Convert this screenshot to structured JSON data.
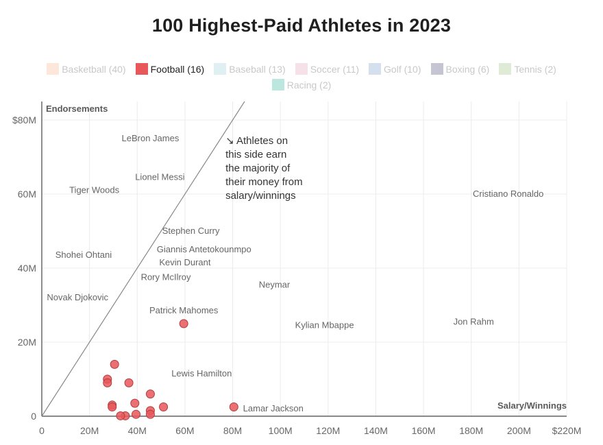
{
  "title": "100 Highest-Paid Athletes in 2023",
  "legend": [
    {
      "label": "Basketball (40)",
      "color": "#f6b58e",
      "active": false,
      "row": 1
    },
    {
      "label": "Football (16)",
      "color": "#e8575a",
      "active": true,
      "row": 1
    },
    {
      "label": "Baseball (13)",
      "color": "#9fd3dc",
      "active": false,
      "row": 1
    },
    {
      "label": "Soccer (11)",
      "color": "#e7a3bd",
      "active": false,
      "row": 1
    },
    {
      "label": "Golf (10)",
      "color": "#7da2cd",
      "active": false,
      "row": 1
    },
    {
      "label": "Boxing (6)",
      "color": "#4a4a7a",
      "active": false,
      "row": 1
    },
    {
      "label": "Tennis (2)",
      "color": "#9ec27b",
      "active": false,
      "row": 1
    },
    {
      "label": "Racing (2)",
      "color": "#2eb89a",
      "active": false,
      "row": 2
    }
  ],
  "chart_data": {
    "type": "scatter",
    "title": "100 Highest-Paid Athletes in 2023",
    "xlabel": "Salary/Winnings",
    "ylabel": "Endorsements",
    "xlim": [
      0,
      220
    ],
    "ylim": [
      0,
      85
    ],
    "x_ticks": [
      "0",
      "20M",
      "40M",
      "60M",
      "80M",
      "100M",
      "120M",
      "140M",
      "160M",
      "180M",
      "200M",
      "$220M"
    ],
    "x_tick_values": [
      0,
      20,
      40,
      60,
      80,
      100,
      120,
      140,
      160,
      180,
      200,
      220
    ],
    "y_ticks": [
      "0",
      "20M",
      "40M",
      "60M",
      "$80M"
    ],
    "y_tick_values": [
      0,
      20,
      40,
      60,
      80
    ],
    "grid": true,
    "series": [
      {
        "name": "Football (16)",
        "color": "#e8575a",
        "points": [
          {
            "x": 59.5,
            "y": 25
          },
          {
            "x": 30.5,
            "y": 14
          },
          {
            "x": 27.5,
            "y": 10
          },
          {
            "x": 27.5,
            "y": 9
          },
          {
            "x": 36.5,
            "y": 9
          },
          {
            "x": 45.5,
            "y": 6
          },
          {
            "x": 39,
            "y": 3.5
          },
          {
            "x": 29.5,
            "y": 3
          },
          {
            "x": 29.5,
            "y": 2.5
          },
          {
            "x": 51,
            "y": 2.5
          },
          {
            "x": 80.5,
            "y": 2.5
          },
          {
            "x": 45.5,
            "y": 1.5
          },
          {
            "x": 45.5,
            "y": 0.5
          },
          {
            "x": 39.5,
            "y": 0.5
          },
          {
            "x": 35,
            "y": 0.1
          },
          {
            "x": 33,
            "y": 0.1
          }
        ]
      }
    ],
    "athlete_labels": [
      {
        "name": "LeBron James",
        "x": 45.5,
        "y": 75
      },
      {
        "name": "Lionel Messi",
        "x": 49.5,
        "y": 64.5
      },
      {
        "name": "Tiger Woods",
        "x": 22,
        "y": 61
      },
      {
        "name": "Cristiano Ronaldo",
        "x": 195.5,
        "y": 60
      },
      {
        "name": "Stephen Curry",
        "x": 62.5,
        "y": 50
      },
      {
        "name": "Giannis Antetokounmpo",
        "x": 68,
        "y": 45
      },
      {
        "name": "Kevin Durant",
        "x": 60,
        "y": 41.5
      },
      {
        "name": "Shohei Ohtani",
        "x": 17.5,
        "y": 43.5
      },
      {
        "name": "Rory McIlroy",
        "x": 52,
        "y": 37.5
      },
      {
        "name": "Neymar",
        "x": 97.5,
        "y": 35.5
      },
      {
        "name": "Novak Djokovic",
        "x": 15,
        "y": 32
      },
      {
        "name": "Patrick Mahomes",
        "x": 59.5,
        "y": 28.5
      },
      {
        "name": "Kylian Mbappe",
        "x": 118.5,
        "y": 24.5
      },
      {
        "name": "Jon Rahm",
        "x": 181,
        "y": 25.5
      },
      {
        "name": "Lewis Hamilton",
        "x": 67,
        "y": 11.5
      },
      {
        "name": "Lamar Jackson",
        "x": 97,
        "y": 2
      }
    ],
    "reference_line": {
      "from": [
        0,
        0
      ],
      "to": [
        85,
        85
      ]
    },
    "annotation": {
      "lines": [
        "↘ Athletes on",
        "this side earn",
        "the majority of",
        "their money from",
        "salary/winnings"
      ],
      "x": 77,
      "y": 73.5
    }
  }
}
